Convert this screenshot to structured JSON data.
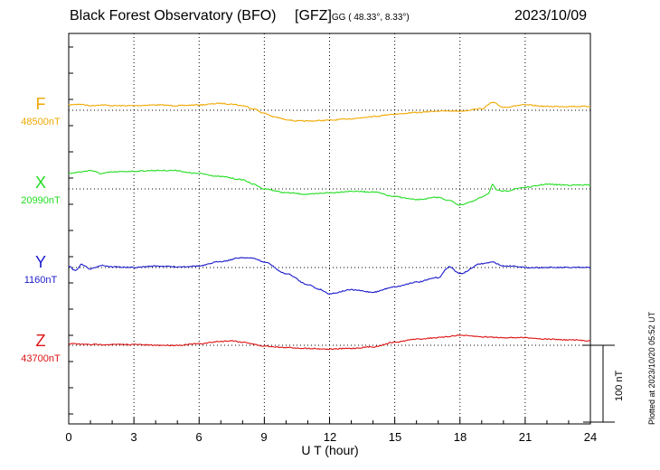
{
  "header": {
    "station": "Black Forest Observatory (BFO)",
    "institute": "[GFZ]",
    "coords": "GG ( 48.33°,   8.33°)",
    "date": "2023/10/09"
  },
  "plotted_note": "Plotted at 2023/10/20 05:52 UT",
  "chart_data": {
    "type": "line",
    "title": "Black Forest Observatory (BFO) [GFZ] 2023/10/09",
    "xlabel": "U T (hour)",
    "xlim": [
      0,
      24
    ],
    "xticks": [
      "0",
      "3",
      "6",
      "9",
      "12",
      "15",
      "18",
      "21",
      "24"
    ],
    "scale_bar": {
      "label": "100 nT",
      "value_nT": 100
    },
    "series": [
      {
        "name": "F",
        "baseline_label": "48500nT",
        "baseline_nT": 48500,
        "color": "#f0a800",
        "x": [
          0,
          0.5,
          1,
          1.5,
          2,
          3,
          4,
          5,
          6,
          7,
          7.5,
          8,
          8.5,
          9,
          9.5,
          10,
          10.5,
          11,
          12,
          13,
          14,
          15,
          16,
          17,
          18,
          19,
          19.5,
          20,
          21,
          22,
          23,
          24
        ],
        "y": [
          48507,
          48508,
          48506,
          48507,
          48506,
          48506,
          48507,
          48506,
          48507,
          48509,
          48508,
          48506,
          48502,
          48496,
          48491,
          48488,
          48486,
          48486,
          48487,
          48489,
          48492,
          48495,
          48497,
          48499,
          48499,
          48502,
          48510,
          48504,
          48507,
          48505,
          48505,
          48505
        ]
      },
      {
        "name": "X",
        "baseline_label": "20990nT",
        "baseline_nT": 20990,
        "color": "#22dd22",
        "x": [
          0,
          0.5,
          1,
          1.5,
          2,
          3,
          4,
          5,
          5.5,
          6,
          7,
          8,
          8.5,
          9,
          10,
          11,
          12,
          13,
          14,
          15,
          16,
          17,
          17.5,
          18,
          18.5,
          19,
          19.3,
          19.5,
          19.7,
          20,
          21,
          22,
          23,
          24
        ],
        "y": [
          21010,
          21012,
          21014,
          21010,
          21012,
          21013,
          21014,
          21014,
          21011,
          21010,
          21006,
          21002,
          20996,
          20990,
          20985,
          20983,
          20985,
          20987,
          20986,
          20980,
          20976,
          20979,
          20975,
          20969,
          20973,
          20979,
          20984,
          20996,
          20988,
          20987,
          20992,
          20996,
          20995,
          20995
        ]
      },
      {
        "name": "Y",
        "baseline_label": "1160nT",
        "baseline_nT": 1160,
        "color": "#1a1acc",
        "x": [
          0,
          0.3,
          0.6,
          1,
          1.5,
          2,
          3,
          4,
          5,
          6,
          7,
          8,
          8.5,
          9,
          10,
          11,
          11.5,
          12,
          13,
          14,
          15,
          16,
          17,
          17.5,
          18,
          19,
          19.5,
          20,
          20.5,
          21,
          22,
          23,
          24
        ],
        "y": [
          1162,
          1156,
          1164,
          1158,
          1163,
          1161,
          1160,
          1162,
          1161,
          1162,
          1168,
          1173,
          1172,
          1167,
          1152,
          1138,
          1132,
          1126,
          1131,
          1128,
          1135,
          1141,
          1147,
          1161,
          1152,
          1165,
          1167,
          1162,
          1162,
          1160,
          1160,
          1160,
          1160
        ]
      },
      {
        "name": "Z",
        "baseline_label": "43700nT",
        "baseline_nT": 43700,
        "color": "#dd1111",
        "x": [
          0,
          1,
          2,
          3,
          4,
          5,
          6,
          7,
          7.5,
          8,
          9,
          10,
          11,
          12,
          13,
          14,
          15,
          16,
          17,
          18,
          18.5,
          19,
          20,
          21,
          22,
          23,
          24
        ],
        "y": [
          43702,
          43701,
          43701,
          43701,
          43700,
          43700,
          43702,
          43705,
          43706,
          43704,
          43699,
          43697,
          43696,
          43695,
          43696,
          43698,
          43704,
          43708,
          43710,
          43713,
          43712,
          43711,
          43710,
          43710,
          43708,
          43707,
          43706
        ]
      }
    ]
  }
}
